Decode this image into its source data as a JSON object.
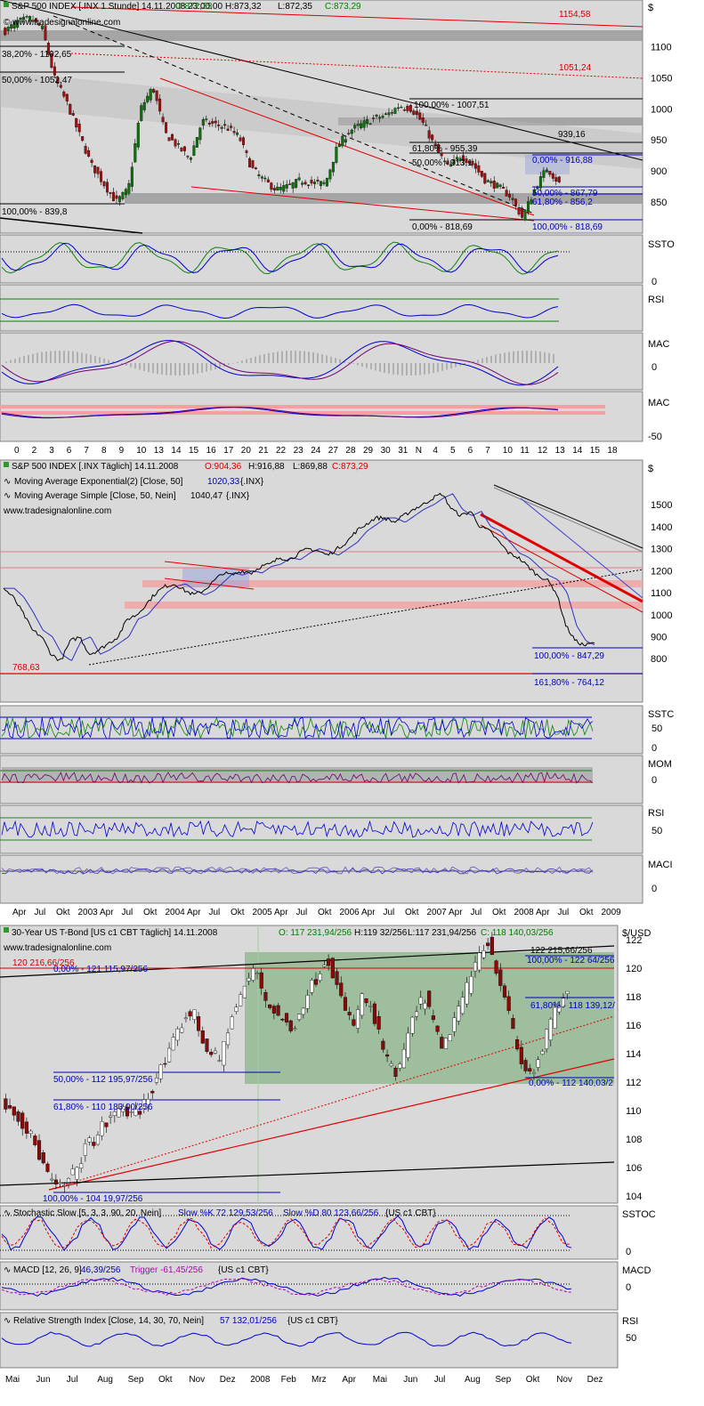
{
  "chart_data": [
    {
      "type": "candlestick",
      "title": "S&P 500 INDEX [.INX  1 Stunde] 14.11.2008 23:00:00",
      "quote": {
        "open": "O:872,35",
        "high": "H:873,32",
        "low": "L:872,35",
        "close": "C:873,29"
      },
      "source": "www.tradesignalonline.com",
      "y_unit": "$",
      "ylim": [
        800,
        1175
      ],
      "yticks": [
        1100,
        1050,
        1000,
        950,
        900,
        850
      ],
      "x_ticks": [
        "0",
        "2",
        "3",
        "6",
        "7",
        "8",
        "9",
        "10",
        "13",
        "14",
        "15",
        "16",
        "17",
        "20",
        "21",
        "22",
        "23",
        "24",
        "27",
        "28",
        "29",
        "30",
        "31",
        "N",
        "4",
        "5",
        "6",
        "7",
        "10",
        "11",
        "12",
        "13",
        "14",
        "15",
        "18"
      ],
      "annotations": [
        {
          "text": "1154,58",
          "color": "#d00000"
        },
        {
          "text": "1051,24",
          "color": "#d00000"
        },
        {
          "text": "38,20% - 1102,65",
          "color": "#000000"
        },
        {
          "text": "50,00% - 1052,47",
          "color": "#000000"
        },
        {
          "text": "100,00% - 839,8",
          "color": "#000000"
        },
        {
          "text": "100,00% - 1007,51",
          "color": "#000000"
        },
        {
          "text": "939,16",
          "color": "#000000"
        },
        {
          "text": "61,80% - 955,39",
          "color": "#000000"
        },
        {
          "text": "50,00% - 913,1",
          "color": "#000000"
        },
        {
          "text": "0,00% - 818,69",
          "color": "#000000"
        },
        {
          "text": "0,00% - 916,88",
          "color": "#0000c0"
        },
        {
          "text": "50,00% - 867,79",
          "color": "#0000c0"
        },
        {
          "text": "61,80% - 856,2",
          "color": "#0000c0"
        },
        {
          "text": "100,00% - 818,69",
          "color": "#0000c0"
        }
      ],
      "series": [
        {
          "values": [
            1125,
            1140,
            1145,
            1130,
            1050,
            1010,
            960,
            910,
            880,
            850,
            870,
            1000,
            1035,
            960,
            940,
            920,
            980,
            975,
            970,
            955,
            905,
            885,
            870,
            875,
            885,
            880,
            880,
            940,
            965,
            975,
            985,
            990,
            1005,
            1000,
            975,
            935,
            905,
            925,
            910,
            885,
            875,
            860,
            825,
            870,
            905,
            880
          ]
        }
      ],
      "indicators": [
        {
          "label": "SSTO",
          "ticks": [
            "0"
          ]
        },
        {
          "label": "RSI",
          "ticks": []
        },
        {
          "label": "MAC",
          "ticks": [
            "0"
          ]
        },
        {
          "label": "MAC",
          "ticks": [
            "-50"
          ]
        }
      ]
    },
    {
      "type": "line",
      "title": "S&P 500 INDEX [.INX  Täglich] 14.11.2008",
      "quote": {
        "open": "O:904,36",
        "high": "H:916,88",
        "low": "L:869,88",
        "close": "C:873,29"
      },
      "legend": [
        {
          "label": "Moving Average Exponential(2) [Close, 50]",
          "value": "1020,33",
          "suffix": "{.INX}"
        },
        {
          "label": "Moving Average Simple [Close, 50, Nein]",
          "value": "1040,47",
          "suffix": "{.INX}"
        }
      ],
      "source": "www.tradesignalonline.com",
      "y_unit": "$",
      "ylim": [
        720,
        1610
      ],
      "yticks": [
        1500,
        1400,
        1300,
        1200,
        1100,
        1000,
        900,
        800
      ],
      "x_ticks": [
        "Apr",
        "Jul",
        "Okt",
        "2003",
        "Apr",
        "Jul",
        "Okt",
        "2004",
        "Apr",
        "Jul",
        "Okt",
        "2005",
        "Apr",
        "Jul",
        "Okt",
        "2006",
        "Apr",
        "Jul",
        "Okt",
        "2007",
        "Apr",
        "Jul",
        "Okt",
        "2008",
        "Apr",
        "Jul",
        "Okt",
        "2009"
      ],
      "annotations": [
        {
          "text": "768,63",
          "color": "#d00000"
        },
        {
          "text": "100,00% - 847,29",
          "color": "#0000c0"
        },
        {
          "text": "161,80% - 764,12",
          "color": "#0000c0"
        }
      ],
      "series": [
        {
          "values": [
            1120,
            1080,
            1010,
            930,
            900,
            820,
            790,
            880,
            900,
            820,
            840,
            870,
            900,
            980,
            1000,
            1050,
            1100,
            1130,
            1140,
            1110,
            1090,
            1110,
            1150,
            1190,
            1180,
            1200,
            1190,
            1220,
            1230,
            1260,
            1250,
            1280,
            1300,
            1290,
            1270,
            1300,
            1330,
            1380,
            1410,
            1440,
            1440,
            1420,
            1450,
            1480,
            1500,
            1530,
            1550,
            1480,
            1450,
            1470,
            1400,
            1380,
            1330,
            1280,
            1260,
            1220,
            1180,
            1160,
            1100,
            950,
            880,
            860,
            873
          ]
        }
      ],
      "indicators": [
        {
          "label": "SSTC",
          "ticks": [
            "50",
            "0"
          ]
        },
        {
          "label": "MOM",
          "ticks": [
            "0"
          ]
        },
        {
          "label": "RSI",
          "ticks": [
            "50"
          ]
        },
        {
          "label": "MACI",
          "ticks": [
            "0"
          ]
        }
      ]
    },
    {
      "type": "candlestick",
      "title": "30-Year US T-Bond [US c1 CBT  Täglich] 14.11.2008",
      "quote": {
        "open": "O: 117 231,94/256",
        "high": "H:119 32/256",
        "low": "L:117 231,94/256",
        "close": "C: 118 140,03/256"
      },
      "source": "www.tradesignalonline.com",
      "y_unit": "$/USD",
      "ylim": [
        103.5,
        123
      ],
      "yticks": [
        122,
        120,
        118,
        116,
        114,
        112,
        110,
        108,
        106,
        104
      ],
      "x_ticks": [
        "Mai",
        "Jun",
        "Jul",
        "Aug",
        "Sep",
        "Okt",
        "Nov",
        "Dez",
        "2008",
        "Feb",
        "Mrz",
        "Apr",
        "Mai",
        "Jun",
        "Jul",
        "Aug",
        "Sep",
        "Okt",
        "Nov",
        "Dez"
      ],
      "annotations": [
        {
          "text": "120 216,66/256",
          "color": "#d00000"
        },
        {
          "text": "0,00% - 121 115,97/256",
          "color": "#0000c0"
        },
        {
          "text": "122 215,66/256",
          "color": "#000000"
        },
        {
          "text": "100,00% - 122 64/256",
          "color": "#0000c0"
        },
        {
          "text": "61,80% - 118 139,12/",
          "color": "#0000c0"
        },
        {
          "text": "0,00% - 112 140,03/2",
          "color": "#0000c0"
        },
        {
          "text": "50,00% - 112 195,97/256",
          "color": "#0000c0"
        },
        {
          "text": "61,80% - 110 183,00/256",
          "color": "#0000c0"
        },
        {
          "text": "100,00% - 104 19,97/256",
          "color": "#0000c0"
        }
      ],
      "series": [
        {
          "values": [
            110.5,
            110,
            109,
            108,
            106.5,
            105,
            104.5,
            105,
            106,
            107.5,
            108,
            109,
            109.5,
            110.5,
            109.5,
            110,
            111,
            112.5,
            113.5,
            115,
            116.5,
            117,
            115,
            114,
            113.5,
            116,
            117.5,
            119,
            120,
            118,
            117,
            116.5,
            115.5,
            117,
            118.5,
            119.5,
            121,
            119,
            117,
            116,
            118,
            117,
            115,
            113,
            112.5,
            115,
            117,
            118,
            116,
            114,
            116,
            117.5,
            119,
            121,
            122,
            120,
            118,
            115,
            113,
            112.5,
            114,
            116,
            117.5,
            118
          ]
        }
      ],
      "indicators": [
        {
          "label": "SSTOC",
          "legend_name": "Stochastic Slow [5, 3, 3, 90, 20, Nein]",
          "k_text": "Slow %K 72 129,53/256",
          "d_text": "Slow %D 80 123,66/256",
          "suffix": "{US c1 CBT}",
          "ticks": [
            "0"
          ]
        },
        {
          "label": "MACD",
          "legend_name": "MACD [12, 26, 9]",
          "k_text": "46,39/256",
          "d_text": "Trigger -61,45/256",
          "suffix": "{US c1 CBT}",
          "ticks": [
            "0"
          ]
        },
        {
          "label": "RSI",
          "legend_name": "Relative Strength Index [Close, 14, 30, 70, Nein]",
          "k_text": "57 132,01/256",
          "d_text": "",
          "suffix": "{US c1 CBT}",
          "ticks": [
            "50"
          ]
        }
      ]
    }
  ],
  "colors": {
    "panel_bg": "#d9d9d9",
    "up": "#107010",
    "down": "#a01010",
    "blue": "#0000d0",
    "green": "#108010",
    "red": "#e00000",
    "purple": "#700070",
    "fill_green": "#8ab48a"
  }
}
